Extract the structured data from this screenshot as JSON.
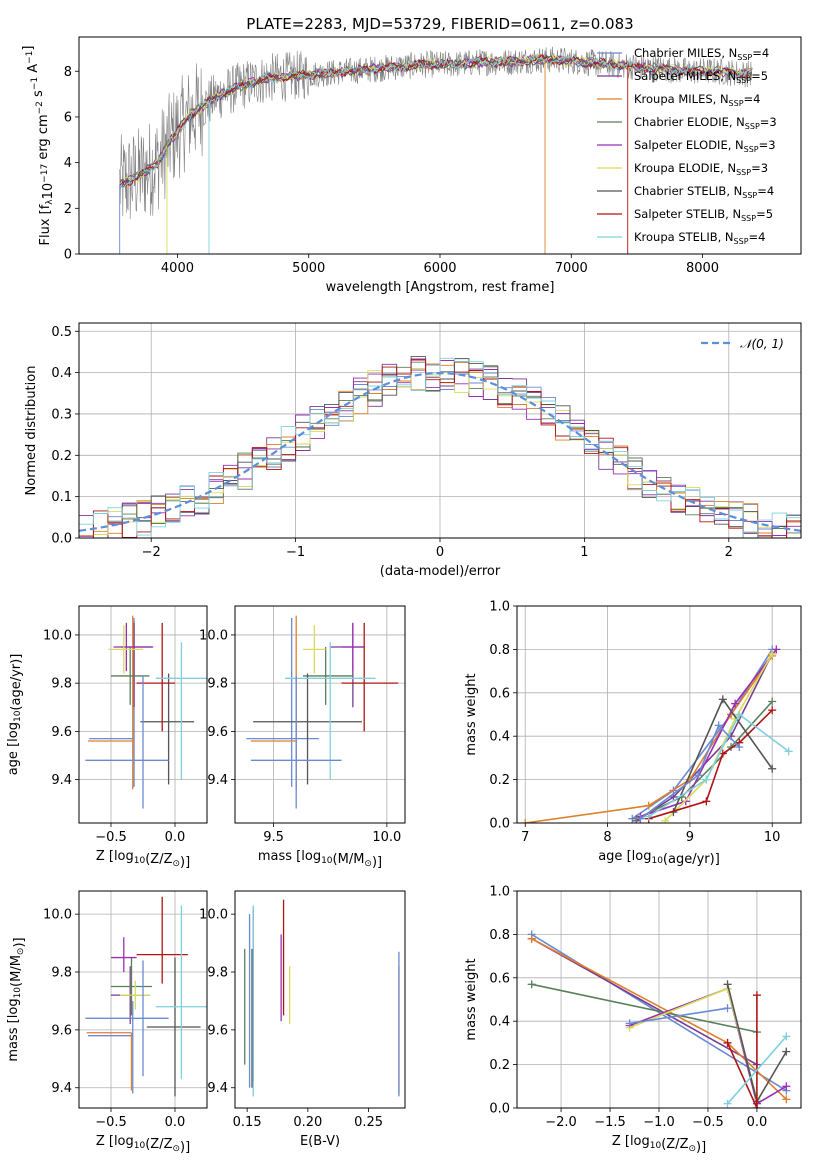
{
  "figure": {
    "title": "PLATE=2283, MJD=53729, FIBERID=0611, z=0.083"
  },
  "series": [
    {
      "name": "Chabrier MILES",
      "sub": "SSP",
      "n": "4",
      "color": "#6a8ad5"
    },
    {
      "name": "Salpeter MILES",
      "sub": "SSP",
      "n": "5",
      "color": "#7a3b92"
    },
    {
      "name": "Kroupa MILES",
      "sub": "SSP",
      "n": "4",
      "color": "#e07f2a"
    },
    {
      "name": "Chabrier ELODIE",
      "sub": "SSP",
      "n": "3",
      "color": "#5a7f5a"
    },
    {
      "name": "Salpeter ELODIE",
      "sub": "SSP",
      "n": "3",
      "color": "#9a2fb2"
    },
    {
      "name": "Kroupa ELODIE",
      "sub": "SSP",
      "n": "3",
      "color": "#d9dc5a"
    },
    {
      "name": "Chabrier STELIB",
      "sub": "SSP",
      "n": "4",
      "color": "#555555"
    },
    {
      "name": "Salpeter STELIB",
      "sub": "SSP",
      "n": "5",
      "color": "#b01515"
    },
    {
      "name": "Kroupa STELIB",
      "sub": "SSP",
      "n": "4",
      "color": "#7fd0dd"
    }
  ],
  "chart_data": [
    {
      "id": "spectrum",
      "type": "line",
      "xlabel": "wavelength [Angstrom, rest frame]",
      "ylabel": "Flux [f_λ10^-17 erg cm^-2 s^-1 A^-1]",
      "xlim": [
        3250,
        8750
      ],
      "ylim": [
        0,
        9.5
      ],
      "xticks": [
        4000,
        5000,
        6000,
        7000,
        8000
      ],
      "yticks": [
        0,
        2,
        4,
        6,
        8
      ],
      "grid": false,
      "legend": "upper-right",
      "data_series": "gray",
      "data_color": "#808080",
      "continuum": {
        "x": [
          3550,
          3700,
          3850,
          3950,
          4100,
          4300,
          4500,
          4700,
          4900,
          5100,
          5300,
          5500,
          5700,
          5900,
          6100,
          6300,
          6500,
          6700,
          6900,
          7100,
          7300,
          7500,
          7700,
          7900,
          8100,
          8300
        ],
        "y": [
          3.0,
          3.4,
          4.0,
          5.0,
          6.1,
          6.9,
          7.4,
          7.7,
          7.8,
          7.9,
          8.0,
          8.1,
          8.2,
          8.3,
          8.3,
          8.4,
          8.4,
          8.5,
          8.5,
          8.4,
          8.3,
          8.2,
          8.1,
          8.0,
          8.0,
          7.9
        ]
      }
    },
    {
      "id": "residuals",
      "type": "histogram",
      "xlabel": "(data-model)/error",
      "ylabel": "Normed distribution",
      "xlim": [
        -2.5,
        2.5
      ],
      "ylim": [
        0,
        0.52
      ],
      "xticks": [
        -2,
        -1,
        0,
        1,
        2
      ],
      "yticks": [
        0.0,
        0.1,
        0.2,
        0.3,
        0.4,
        0.5
      ],
      "grid": true,
      "legend": "upper-right",
      "gaussian_label": "𝒩(0, 1)",
      "gaussian_color": "#5b8fd9",
      "bin_width": 0.1
    },
    {
      "id": "age-vs-z",
      "type": "errorbar",
      "xlabel": "Z [log10(Z/Z⊙)]",
      "ylabel": "age [log10(age/yr)]",
      "xlim": [
        -0.75,
        0.25
      ],
      "ylim": [
        9.22,
        10.12
      ],
      "xticks": [
        -0.5,
        0.0
      ],
      "yticks": [
        9.4,
        9.6,
        9.8,
        10.0
      ],
      "grid": true,
      "points": [
        {
          "x": -0.32,
          "y": 9.57,
          "xerr": [
            0.35,
            0.0
          ],
          "yerr": [
            0.2,
            0.5
          ]
        },
        {
          "x": -0.32,
          "y": 9.95,
          "xerr": [
            0.1,
            0.15
          ],
          "yerr": [
            0.25,
            0.1
          ]
        },
        {
          "x": -0.33,
          "y": 9.56,
          "xerr": [
            0.35,
            0.0
          ],
          "yerr": [
            0.2,
            0.52
          ]
        },
        {
          "x": -0.35,
          "y": 9.83,
          "xerr": [
            0.15,
            0.15
          ],
          "yerr": [
            0.12,
            0.12
          ]
        },
        {
          "x": -0.38,
          "y": 9.95,
          "xerr": [
            0.1,
            0.2
          ],
          "yerr": [
            0.1,
            0.1
          ]
        },
        {
          "x": -0.4,
          "y": 9.94,
          "xerr": [
            0.12,
            0.15
          ],
          "yerr": [
            0.1,
            0.1
          ]
        },
        {
          "x": -0.05,
          "y": 9.64,
          "xerr": [
            0.22,
            0.2
          ],
          "yerr": [
            0.26,
            0.2
          ]
        },
        {
          "x": -0.1,
          "y": 9.8,
          "xerr": [
            0.2,
            0.1
          ],
          "yerr": [
            0.2,
            0.25
          ]
        },
        {
          "x": 0.05,
          "y": 9.82,
          "xerr": [
            0.2,
            0.2
          ],
          "yerr": [
            0.42,
            0.15
          ]
        },
        {
          "x": -0.25,
          "y": 9.48,
          "xerr": [
            0.45,
            0.2
          ],
          "yerr": [
            0.2,
            0.35
          ]
        }
      ]
    },
    {
      "id": "age-vs-mass",
      "type": "errorbar",
      "xlabel": "mass [log10(M/M⊙)]",
      "ylabel": "",
      "xlim": [
        9.33,
        10.08
      ],
      "ylim": [
        9.22,
        10.12
      ],
      "xticks": [
        9.5,
        10.0
      ],
      "yticks": [
        9.4,
        9.6,
        9.8,
        10.0
      ],
      "grid": true,
      "points": [
        {
          "x": 9.58,
          "y": 9.57,
          "xerr": [
            0.2,
            0.12
          ],
          "yerr": [
            0.2,
            0.5
          ]
        },
        {
          "x": 9.85,
          "y": 9.95,
          "xerr": [
            0.1,
            0.05
          ],
          "yerr": [
            0.25,
            0.1
          ]
        },
        {
          "x": 9.6,
          "y": 9.56,
          "xerr": [
            0.2,
            0.0
          ],
          "yerr": [
            0.2,
            0.52
          ]
        },
        {
          "x": 9.73,
          "y": 9.83,
          "xerr": [
            0.1,
            0.12
          ],
          "yerr": [
            0.12,
            0.12
          ]
        },
        {
          "x": 9.85,
          "y": 9.95,
          "xerr": [
            0.05,
            0.05
          ],
          "yerr": [
            0.1,
            0.1
          ]
        },
        {
          "x": 9.68,
          "y": 9.94,
          "xerr": [
            0.05,
            0.05
          ],
          "yerr": [
            0.1,
            0.1
          ]
        },
        {
          "x": 9.65,
          "y": 9.64,
          "xerr": [
            0.24,
            0.24
          ],
          "yerr": [
            0.26,
            0.2
          ]
        },
        {
          "x": 9.9,
          "y": 9.8,
          "xerr": [
            0.1,
            0.15
          ],
          "yerr": [
            0.2,
            0.25
          ]
        },
        {
          "x": 9.75,
          "y": 9.82,
          "xerr": [
            0.2,
            0.2
          ],
          "yerr": [
            0.42,
            0.15
          ]
        },
        {
          "x": 9.6,
          "y": 9.48,
          "xerr": [
            0.2,
            0.2
          ],
          "yerr": [
            0.2,
            0.35
          ]
        }
      ]
    },
    {
      "id": "weight-vs-age",
      "type": "line",
      "xlabel": "age [log10(age/yr)]",
      "ylabel": "mass weight",
      "xlim": [
        6.9,
        10.35
      ],
      "ylim": [
        0,
        1.0
      ],
      "xticks": [
        7,
        8,
        9,
        10
      ],
      "yticks": [
        0.0,
        0.2,
        0.4,
        0.6,
        0.8,
        1.0
      ],
      "grid": true,
      "lines": [
        {
          "x": [
            8.3,
            8.8,
            9.5,
            10.0
          ],
          "y": [
            0.02,
            0.15,
            0.5,
            0.8
          ]
        },
        {
          "x": [
            8.35,
            8.8,
            9.5,
            10.0
          ],
          "y": [
            0.01,
            0.12,
            0.4,
            0.78
          ]
        },
        {
          "x": [
            7.0,
            8.5,
            9.0,
            9.5,
            10.0
          ],
          "y": [
            0.0,
            0.08,
            0.2,
            0.5,
            0.77
          ]
        },
        {
          "x": [
            8.35,
            8.9,
            9.5,
            10.0
          ],
          "y": [
            0.02,
            0.12,
            0.35,
            0.56
          ]
        },
        {
          "x": [
            8.4,
            8.95,
            9.55,
            10.05
          ],
          "y": [
            0.03,
            0.1,
            0.55,
            0.8
          ]
        },
        {
          "x": [
            8.7,
            9.2,
            9.55,
            10.0
          ],
          "y": [
            0.01,
            0.2,
            0.48,
            0.78
          ]
        },
        {
          "x": [
            8.8,
            9.4,
            10.0
          ],
          "y": [
            0.05,
            0.57,
            0.25
          ]
        },
        {
          "x": [
            8.5,
            9.2,
            9.4,
            9.6,
            10.0
          ],
          "y": [
            0.02,
            0.1,
            0.32,
            0.37,
            0.52
          ]
        },
        {
          "x": [
            8.5,
            9.2,
            9.6,
            10.2
          ],
          "y": [
            0.03,
            0.2,
            0.5,
            0.33
          ]
        },
        {
          "x": [
            8.4,
            9.1,
            9.35,
            9.6
          ],
          "y": [
            0.02,
            0.22,
            0.45,
            0.35
          ]
        }
      ]
    },
    {
      "id": "mass-vs-z",
      "type": "errorbar",
      "xlabel": "Z [log10(Z/Z⊙)]",
      "ylabel": "mass [log10(M/M⊙)]",
      "xlim": [
        -0.75,
        0.25
      ],
      "ylim": [
        9.33,
        10.08
      ],
      "xticks": [
        -0.5,
        0.0
      ],
      "yticks": [
        9.4,
        9.6,
        9.8,
        10.0
      ],
      "grid": true,
      "points": [
        {
          "x": -0.33,
          "y": 9.58,
          "xerr": [
            0.35,
            0.0
          ],
          "yerr": [
            0.2,
            0.12
          ]
        },
        {
          "x": -0.35,
          "y": 9.72,
          "xerr": [
            0.15,
            0.15
          ],
          "yerr": [
            0.1,
            0.1
          ]
        },
        {
          "x": -0.34,
          "y": 9.59,
          "xerr": [
            0.35,
            0.0
          ],
          "yerr": [
            0.2,
            0.0
          ]
        },
        {
          "x": -0.34,
          "y": 9.75,
          "xerr": [
            0.16,
            0.16
          ],
          "yerr": [
            0.1,
            0.1
          ]
        },
        {
          "x": -0.4,
          "y": 9.85,
          "xerr": [
            0.1,
            0.1
          ],
          "yerr": [
            0.05,
            0.07
          ]
        },
        {
          "x": -0.31,
          "y": 9.72,
          "xerr": [
            0.12,
            0.12
          ],
          "yerr": [
            0.05,
            0.05
          ]
        },
        {
          "x": 0.0,
          "y": 9.61,
          "xerr": [
            0.22,
            0.2
          ],
          "yerr": [
            0.24,
            0.24
          ]
        },
        {
          "x": -0.1,
          "y": 9.86,
          "xerr": [
            0.2,
            0.2
          ],
          "yerr": [
            0.1,
            0.2
          ]
        },
        {
          "x": 0.05,
          "y": 9.68,
          "xerr": [
            0.2,
            0.2
          ],
          "yerr": [
            0.25,
            0.35
          ]
        },
        {
          "x": -0.25,
          "y": 9.64,
          "xerr": [
            0.45,
            0.2
          ],
          "yerr": [
            0.2,
            0.2
          ]
        }
      ]
    },
    {
      "id": "mass-vs-ebv",
      "type": "errorbar",
      "xlabel": "E(B-V)",
      "ylabel": "",
      "xlim": [
        0.14,
        0.28
      ],
      "ylim": [
        9.33,
        10.08
      ],
      "xticks": [
        0.15,
        0.2,
        0.25
      ],
      "yticks": [
        9.4,
        9.6,
        9.8,
        10.0
      ],
      "grid": false,
      "points": [
        {
          "x": 0.152,
          "y": 9.7,
          "xerr": [
            0,
            0
          ],
          "yerr": [
            0.3,
            0.3
          ]
        },
        {
          "x": 0.155,
          "y": 9.72,
          "xerr": [
            0,
            0
          ],
          "yerr": [
            0.3,
            0.3
          ]
        },
        {
          "x": 0.275,
          "y": 9.6,
          "xerr": [
            0,
            0
          ],
          "yerr": [
            0.22,
            0.22
          ]
        },
        {
          "x": 0.148,
          "y": 9.68,
          "xerr": [
            0,
            0
          ],
          "yerr": [
            0.2,
            0.2
          ]
        },
        {
          "x": 0.178,
          "y": 9.78,
          "xerr": [
            0,
            0
          ],
          "yerr": [
            0.15,
            0.15
          ]
        },
        {
          "x": 0.185,
          "y": 9.72,
          "xerr": [
            0,
            0
          ],
          "yerr": [
            0.1,
            0.1
          ]
        },
        {
          "x": 0.154,
          "y": 9.64,
          "xerr": [
            0,
            0
          ],
          "yerr": [
            0.24,
            0.24
          ]
        },
        {
          "x": 0.18,
          "y": 9.85,
          "xerr": [
            0,
            0
          ],
          "yerr": [
            0.2,
            0.2
          ]
        },
        {
          "x": 0.155,
          "y": 9.7,
          "xerr": [
            0,
            0
          ],
          "yerr": [
            0.33,
            0.33
          ]
        },
        {
          "x": 0.275,
          "y": 9.62,
          "xerr": [
            0,
            0
          ],
          "yerr": [
            0.25,
            0.25
          ]
        }
      ]
    },
    {
      "id": "weight-vs-z",
      "type": "line",
      "xlabel": "Z [log10(Z/Z⊙)]",
      "ylabel": "mass weight",
      "xlim": [
        -2.45,
        0.45
      ],
      "ylim": [
        0,
        1.0
      ],
      "xticks": [
        -2.0,
        -1.5,
        -1.0,
        -0.5,
        0.0
      ],
      "yticks": [
        0.0,
        0.2,
        0.4,
        0.6,
        0.8,
        1.0
      ],
      "grid": true,
      "lines": [
        {
          "x": [
            -2.3,
            0.3
          ],
          "y": [
            0.8,
            0.08
          ]
        },
        {
          "x": [
            -2.3,
            0.0
          ],
          "y": [
            0.78,
            0.2
          ]
        },
        {
          "x": [
            -2.3,
            -0.3,
            0.3
          ],
          "y": [
            0.78,
            0.3,
            0.04
          ]
        },
        {
          "x": [
            -2.3,
            0.0
          ],
          "y": [
            0.57,
            0.35
          ]
        },
        {
          "x": [
            -1.3,
            -0.3,
            0.0,
            0.3
          ],
          "y": [
            0.38,
            0.55,
            0.02,
            0.1
          ]
        },
        {
          "x": [
            -1.3,
            -0.3,
            0.0
          ],
          "y": [
            0.37,
            0.55,
            0.04
          ]
        },
        {
          "x": [
            -0.3,
            0.0,
            0.3
          ],
          "y": [
            0.57,
            0.03,
            0.26
          ]
        },
        {
          "x": [
            -0.3,
            0.0,
            0.0
          ],
          "y": [
            0.3,
            0.0,
            0.52
          ]
        },
        {
          "x": [
            -0.3,
            0.3
          ],
          "y": [
            0.02,
            0.33
          ]
        },
        {
          "x": [
            -1.3,
            -0.3
          ],
          "y": [
            0.39,
            0.46
          ]
        }
      ]
    }
  ]
}
